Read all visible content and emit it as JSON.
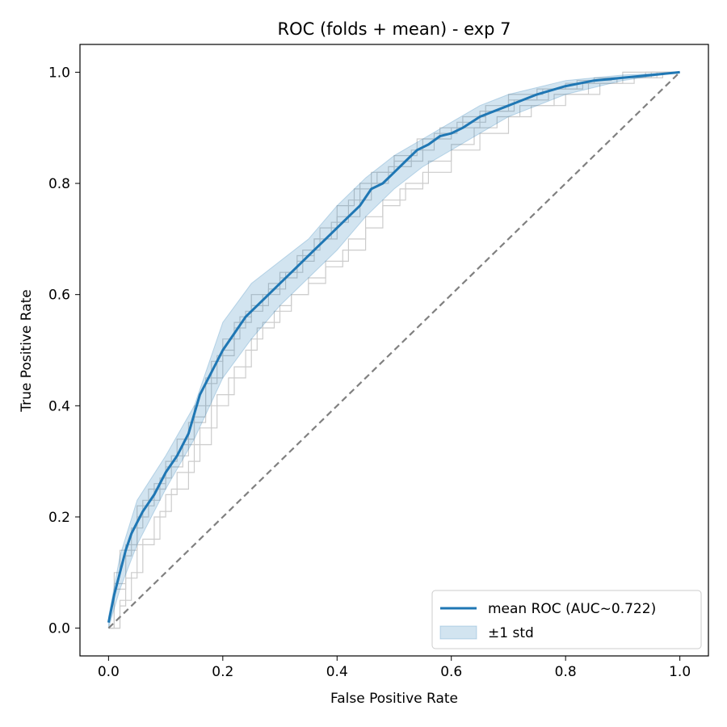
{
  "chart_data": {
    "type": "line",
    "title": "ROC (folds + mean) - exp 7",
    "xlabel": "False Positive Rate",
    "ylabel": "True Positive Rate",
    "xlim": [
      -0.05,
      1.05
    ],
    "ylim": [
      -0.05,
      1.05
    ],
    "xticks": [
      0.0,
      0.2,
      0.4,
      0.6,
      0.8,
      1.0
    ],
    "yticks": [
      0.0,
      0.2,
      0.4,
      0.6,
      0.8,
      1.0
    ],
    "xtick_labels": [
      "0.0",
      "0.2",
      "0.4",
      "0.6",
      "0.8",
      "1.0"
    ],
    "ytick_labels": [
      "0.0",
      "0.2",
      "0.4",
      "0.6",
      "0.8",
      "1.0"
    ],
    "grid": false,
    "legend_position": "lower-right",
    "colors": {
      "mean": "#1f77b4",
      "band": "#1f77b4",
      "folds": "#cccccc",
      "chance": "#808080"
    },
    "mean_roc": {
      "name": "mean ROC (AUC~0.722)",
      "x": [
        0.0,
        0.01,
        0.02,
        0.03,
        0.04,
        0.05,
        0.06,
        0.08,
        0.1,
        0.12,
        0.14,
        0.16,
        0.18,
        0.2,
        0.22,
        0.24,
        0.26,
        0.28,
        0.3,
        0.32,
        0.34,
        0.36,
        0.38,
        0.4,
        0.42,
        0.44,
        0.46,
        0.48,
        0.5,
        0.52,
        0.54,
        0.56,
        0.58,
        0.6,
        0.62,
        0.65,
        0.7,
        0.75,
        0.8,
        0.85,
        0.9,
        0.95,
        1.0
      ],
      "y": [
        0.01,
        0.06,
        0.1,
        0.14,
        0.17,
        0.19,
        0.21,
        0.24,
        0.28,
        0.31,
        0.35,
        0.42,
        0.46,
        0.5,
        0.53,
        0.56,
        0.58,
        0.6,
        0.62,
        0.64,
        0.66,
        0.68,
        0.7,
        0.72,
        0.74,
        0.76,
        0.79,
        0.8,
        0.82,
        0.84,
        0.86,
        0.87,
        0.885,
        0.89,
        0.9,
        0.92,
        0.94,
        0.96,
        0.975,
        0.985,
        0.99,
        0.995,
        1.0
      ]
    },
    "std_band": {
      "name": "±1 std",
      "x": [
        0.0,
        0.02,
        0.05,
        0.1,
        0.15,
        0.2,
        0.25,
        0.3,
        0.35,
        0.4,
        0.45,
        0.5,
        0.55,
        0.6,
        0.65,
        0.7,
        0.8,
        0.9,
        1.0
      ],
      "lower": [
        0.0,
        0.07,
        0.15,
        0.25,
        0.34,
        0.45,
        0.52,
        0.58,
        0.63,
        0.68,
        0.74,
        0.79,
        0.83,
        0.86,
        0.89,
        0.92,
        0.96,
        0.985,
        1.0
      ],
      "upper": [
        0.02,
        0.13,
        0.23,
        0.31,
        0.4,
        0.55,
        0.62,
        0.66,
        0.7,
        0.76,
        0.81,
        0.85,
        0.88,
        0.91,
        0.94,
        0.96,
        0.985,
        0.995,
        1.0
      ]
    },
    "fold_rocs": [
      {
        "x": [
          0.0,
          0.01,
          0.03,
          0.05,
          0.08,
          0.1,
          0.12,
          0.15,
          0.18,
          0.2,
          0.23,
          0.25,
          0.28,
          0.3,
          0.33,
          0.36,
          0.4,
          0.44,
          0.47,
          0.5,
          0.55,
          0.6,
          0.65,
          0.7,
          0.75,
          0.8,
          0.85,
          0.9,
          0.95,
          1.0
        ],
        "y": [
          0.0,
          0.08,
          0.15,
          0.22,
          0.26,
          0.3,
          0.34,
          0.4,
          0.48,
          0.52,
          0.56,
          0.6,
          0.62,
          0.64,
          0.67,
          0.7,
          0.74,
          0.8,
          0.82,
          0.84,
          0.88,
          0.9,
          0.93,
          0.95,
          0.97,
          0.98,
          0.99,
          1.0,
          1.0,
          1.0
        ]
      },
      {
        "x": [
          0.0,
          0.02,
          0.04,
          0.06,
          0.09,
          0.11,
          0.14,
          0.16,
          0.19,
          0.22,
          0.25,
          0.27,
          0.3,
          0.32,
          0.35,
          0.38,
          0.42,
          0.45,
          0.48,
          0.52,
          0.56,
          0.6,
          0.64,
          0.68,
          0.72,
          0.78,
          0.84,
          0.9,
          0.96,
          1.0
        ],
        "y": [
          0.0,
          0.05,
          0.1,
          0.16,
          0.21,
          0.25,
          0.3,
          0.36,
          0.42,
          0.47,
          0.52,
          0.55,
          0.58,
          0.6,
          0.63,
          0.66,
          0.7,
          0.74,
          0.77,
          0.8,
          0.84,
          0.87,
          0.9,
          0.92,
          0.94,
          0.96,
          0.98,
          0.99,
          1.0,
          1.0
        ]
      },
      {
        "x": [
          0.0,
          0.01,
          0.02,
          0.05,
          0.07,
          0.1,
          0.13,
          0.15,
          0.17,
          0.2,
          0.22,
          0.25,
          0.28,
          0.31,
          0.34,
          0.37,
          0.4,
          0.43,
          0.46,
          0.5,
          0.54,
          0.58,
          0.62,
          0.66,
          0.7,
          0.76,
          0.82,
          0.88,
          0.94,
          1.0
        ],
        "y": [
          0.0,
          0.1,
          0.14,
          0.2,
          0.25,
          0.29,
          0.33,
          0.38,
          0.45,
          0.5,
          0.55,
          0.58,
          0.61,
          0.64,
          0.68,
          0.72,
          0.76,
          0.79,
          0.82,
          0.85,
          0.88,
          0.9,
          0.92,
          0.94,
          0.96,
          0.97,
          0.985,
          0.99,
          1.0,
          1.0
        ]
      },
      {
        "x": [
          0.0,
          0.02,
          0.03,
          0.05,
          0.08,
          0.1,
          0.12,
          0.15,
          0.18,
          0.21,
          0.24,
          0.26,
          0.29,
          0.32,
          0.35,
          0.38,
          0.41,
          0.45,
          0.48,
          0.51,
          0.55,
          0.6,
          0.65,
          0.7,
          0.74,
          0.8,
          0.86,
          0.92,
          0.97,
          1.0
        ],
        "y": [
          0.0,
          0.04,
          0.09,
          0.15,
          0.2,
          0.24,
          0.28,
          0.33,
          0.4,
          0.45,
          0.5,
          0.54,
          0.57,
          0.6,
          0.62,
          0.65,
          0.68,
          0.72,
          0.76,
          0.79,
          0.82,
          0.86,
          0.89,
          0.92,
          0.94,
          0.96,
          0.98,
          0.99,
          1.0,
          1.0
        ]
      },
      {
        "x": [
          0.0,
          0.01,
          0.03,
          0.04,
          0.06,
          0.09,
          0.11,
          0.14,
          0.17,
          0.19,
          0.22,
          0.24,
          0.27,
          0.3,
          0.33,
          0.36,
          0.39,
          0.42,
          0.46,
          0.49,
          0.53,
          0.57,
          0.61,
          0.66,
          0.71,
          0.77,
          0.83,
          0.89,
          0.95,
          1.0
        ],
        "y": [
          0.0,
          0.07,
          0.13,
          0.18,
          0.23,
          0.27,
          0.31,
          0.37,
          0.44,
          0.49,
          0.54,
          0.57,
          0.6,
          0.63,
          0.66,
          0.7,
          0.73,
          0.77,
          0.8,
          0.83,
          0.86,
          0.89,
          0.91,
          0.93,
          0.95,
          0.97,
          0.98,
          0.99,
          1.0,
          1.0
        ]
      }
    ],
    "chance_line": {
      "x": [
        0.0,
        1.0
      ],
      "y": [
        0.0,
        1.0
      ]
    }
  }
}
